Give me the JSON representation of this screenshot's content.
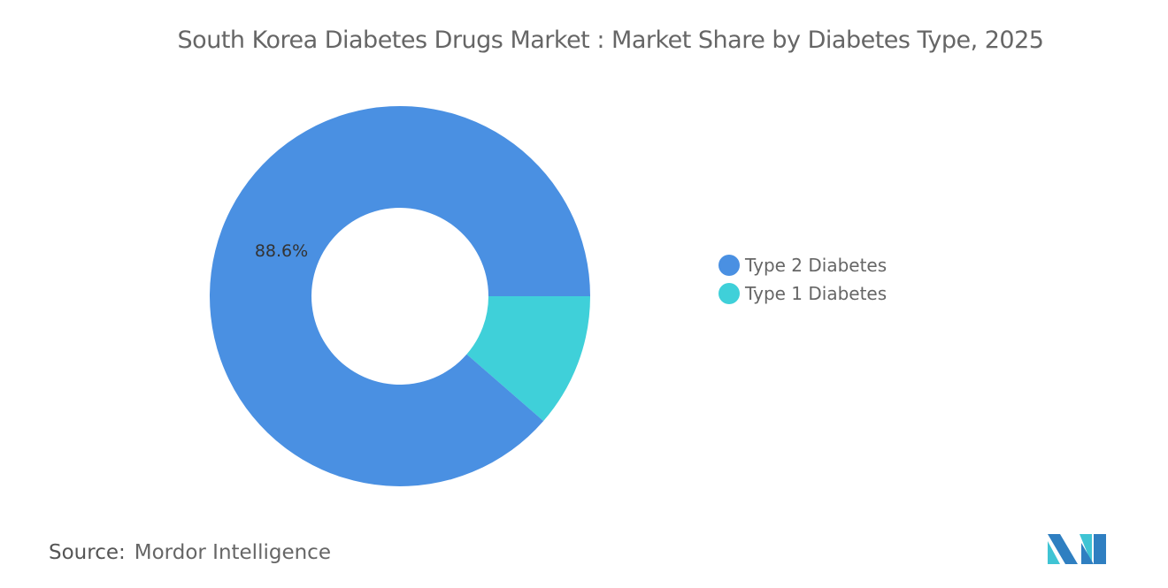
{
  "chart_data": {
    "type": "pie",
    "variant": "donut",
    "title": "South Korea Diabetes Drugs Market : Market Share by Diabetes Type, 2025",
    "categories": [
      "Type 2 Diabetes",
      "Type 1 Diabetes"
    ],
    "values": [
      88.6,
      11.4
    ],
    "data_labels": [
      "88.6%",
      ""
    ],
    "colors": [
      "#4a90e2",
      "#3fd0d9"
    ],
    "legend_position": "right"
  },
  "source": {
    "label": "Source:",
    "text": "Mordor Intelligence"
  },
  "logo": {
    "text": "Mordor Intelligence"
  }
}
